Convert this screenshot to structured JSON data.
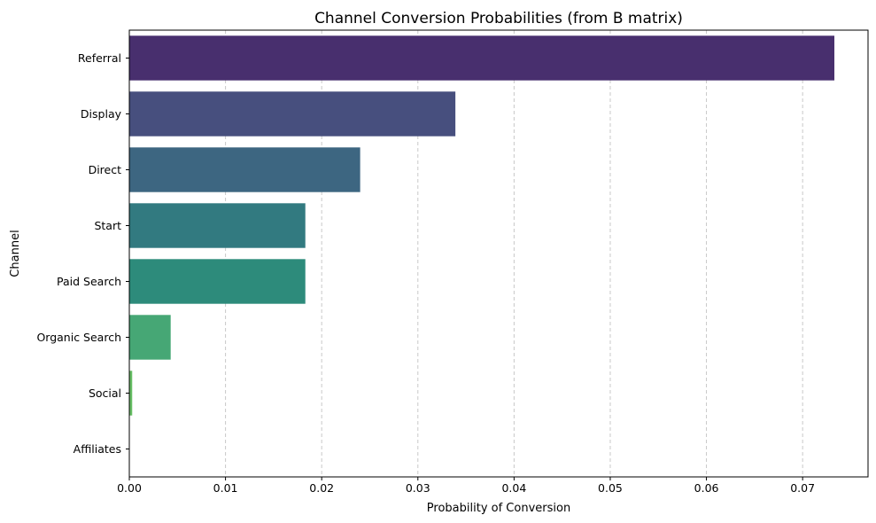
{
  "chart_data": {
    "type": "bar",
    "orientation": "horizontal",
    "title": "Channel Conversion Probabilities (from B matrix)",
    "xlabel": "Probability of Conversion",
    "ylabel": "Channel",
    "categories": [
      "Referral",
      "Display",
      "Direct",
      "Start",
      "Paid Search",
      "Organic Search",
      "Social",
      "Affiliates"
    ],
    "values": [
      0.0733,
      0.0339,
      0.024,
      0.0183,
      0.0183,
      0.0043,
      0.0003,
      0.0
    ],
    "colors": [
      "#482f6e",
      "#474f7e",
      "#3d6681",
      "#327a80",
      "#2d8b7b",
      "#46a775",
      "#66bd64",
      "#a4d059"
    ],
    "xlim": [
      0,
      0.0768
    ],
    "xticks": [
      0.0,
      0.01,
      0.02,
      0.03,
      0.04,
      0.05,
      0.06,
      0.07
    ],
    "xtick_labels": [
      "0.00",
      "0.01",
      "0.02",
      "0.03",
      "0.04",
      "0.05",
      "0.06",
      "0.07"
    ],
    "grid": {
      "axis": "x",
      "style": "dashed",
      "color": "#c8c8c8"
    }
  }
}
